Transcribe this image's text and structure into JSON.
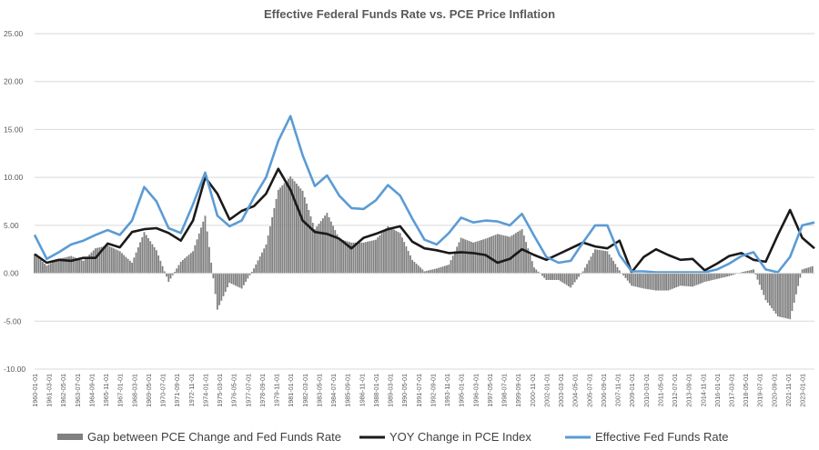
{
  "chart_data": {
    "type": "line",
    "title": "Effective Federal Funds Rate vs. PCE Price Inflation",
    "xlabel": "",
    "ylabel": "",
    "ylim": [
      -10,
      25
    ],
    "yticks": [
      "-10.00",
      "-5.00",
      "0.00",
      "5.00",
      "10.00",
      "15.00",
      "20.00",
      "25.00"
    ],
    "grid": "horizontal",
    "legend_position": "bottom",
    "x": [
      "1960-01-01",
      "1961-01-01",
      "1962-01-01",
      "1963-01-01",
      "1964-01-01",
      "1965-01-01",
      "1966-01-01",
      "1967-01-01",
      "1968-01-01",
      "1969-01-01",
      "1970-01-01",
      "1971-01-01",
      "1972-01-01",
      "1973-01-01",
      "1974-01-01",
      "1975-01-01",
      "1976-01-01",
      "1977-01-01",
      "1978-01-01",
      "1979-01-01",
      "1980-01-01",
      "1981-01-01",
      "1982-01-01",
      "1983-01-01",
      "1984-01-01",
      "1985-01-01",
      "1986-01-01",
      "1987-01-01",
      "1988-01-01",
      "1989-01-01",
      "1990-01-01",
      "1991-01-01",
      "1992-01-01",
      "1993-01-01",
      "1994-01-01",
      "1995-01-01",
      "1996-01-01",
      "1997-01-01",
      "1998-01-01",
      "1999-01-01",
      "2000-01-01",
      "2001-01-01",
      "2002-01-01",
      "2003-01-01",
      "2004-01-01",
      "2005-01-01",
      "2006-01-01",
      "2007-01-01",
      "2008-01-01",
      "2009-01-01",
      "2010-01-01",
      "2011-01-01",
      "2012-01-01",
      "2013-01-01",
      "2014-01-01",
      "2015-01-01",
      "2016-01-01",
      "2017-01-01",
      "2018-01-01",
      "2019-01-01",
      "2020-01-01",
      "2021-01-01",
      "2022-01-01",
      "2023-01-01",
      "2024-01-01"
    ],
    "xtick_labels": [
      "1960-01-01",
      "1961-03-01",
      "1962-05-01",
      "1963-07-01",
      "1964-09-01",
      "1965-11-01",
      "1967-01-01",
      "1968-03-01",
      "1969-05-01",
      "1970-07-01",
      "1971-09-01",
      "1972-11-01",
      "1974-01-01",
      "1975-03-01",
      "1976-05-01",
      "1977-07-01",
      "1978-09-01",
      "1979-11-01",
      "1981-01-01",
      "1982-03-01",
      "1983-05-01",
      "1984-07-01",
      "1985-09-01",
      "1986-11-01",
      "1988-01-01",
      "1989-03-01",
      "1990-05-01",
      "1991-07-01",
      "1992-09-01",
      "1993-11-01",
      "1995-01-01",
      "1996-03-01",
      "1997-05-01",
      "1998-07-01",
      "1999-09-01",
      "2000-11-01",
      "2002-01-01",
      "2003-03-01",
      "2004-05-01",
      "2005-07-01",
      "2006-09-01",
      "2007-11-01",
      "2009-01-01",
      "2010-03-01",
      "2011-05-01",
      "2012-07-01",
      "2013-09-01",
      "2014-11-01",
      "2016-01-01",
      "2017-03-01",
      "2018-05-01",
      "2019-07-01",
      "2020-09-01",
      "2021-11-01",
      "2023-01-01"
    ],
    "series": [
      {
        "name": "Gap between PCE Change and Fed Funds Rate",
        "type": "bar",
        "color": "#808080",
        "values": [
          2.0,
          0.8,
          1.5,
          1.8,
          1.3,
          2.6,
          2.9,
          2.3,
          1.1,
          4.3,
          2.4,
          -0.9,
          1.2,
          2.3,
          6.0,
          -3.8,
          -1.0,
          -1.6,
          0.5,
          3.0,
          8.7,
          10.1,
          8.6,
          4.6,
          6.3,
          3.6,
          3.2,
          3.2,
          3.5,
          4.9,
          4.2,
          1.4,
          0.2,
          0.5,
          0.9,
          3.7,
          3.2,
          3.6,
          4.1,
          3.8,
          4.6,
          0.6,
          -0.7,
          -0.7,
          -1.5,
          0.2,
          2.5,
          2.3,
          0.3,
          -1.3,
          -1.6,
          -1.8,
          -1.8,
          -1.3,
          -1.4,
          -0.9,
          -0.6,
          -0.3,
          0.1,
          0.4,
          -2.8,
          -4.5,
          -4.8,
          0.4,
          0.8
        ]
      },
      {
        "name": "YOY Change in PCE Index",
        "type": "line",
        "color": "#1a1a1a",
        "values": [
          2.0,
          1.1,
          1.4,
          1.3,
          1.6,
          1.6,
          3.1,
          2.7,
          4.3,
          4.6,
          4.7,
          4.2,
          3.4,
          5.5,
          10.0,
          8.3,
          5.6,
          6.5,
          7.0,
          8.3,
          10.9,
          8.7,
          5.5,
          4.3,
          4.1,
          3.6,
          2.6,
          3.7,
          4.1,
          4.6,
          4.9,
          3.3,
          2.6,
          2.4,
          2.1,
          2.2,
          2.1,
          1.9,
          1.1,
          1.5,
          2.5,
          1.9,
          1.4,
          2.0,
          2.6,
          3.2,
          2.8,
          2.6,
          3.4,
          0.1,
          1.7,
          2.5,
          1.9,
          1.4,
          1.5,
          0.3,
          1.0,
          1.8,
          2.1,
          1.4,
          1.2,
          4.0,
          6.6,
          3.7,
          2.6
        ]
      },
      {
        "name": "Effective Fed Funds Rate",
        "type": "line",
        "color": "#5b9bd5",
        "values": [
          4.0,
          1.5,
          2.2,
          3.0,
          3.4,
          4.0,
          4.5,
          4.0,
          5.5,
          9.0,
          7.5,
          4.7,
          4.2,
          7.2,
          10.5,
          6.0,
          4.9,
          5.5,
          7.9,
          10.0,
          13.8,
          16.4,
          12.3,
          9.1,
          10.2,
          8.1,
          6.8,
          6.7,
          7.6,
          9.2,
          8.1,
          5.7,
          3.5,
          3.0,
          4.2,
          5.8,
          5.3,
          5.5,
          5.4,
          5.0,
          6.2,
          3.9,
          1.7,
          1.1,
          1.3,
          3.2,
          5.0,
          5.0,
          1.9,
          0.2,
          0.2,
          0.1,
          0.1,
          0.1,
          0.1,
          0.1,
          0.4,
          1.0,
          1.8,
          2.2,
          0.4,
          0.1,
          1.7,
          5.0,
          5.3
        ]
      }
    ]
  }
}
